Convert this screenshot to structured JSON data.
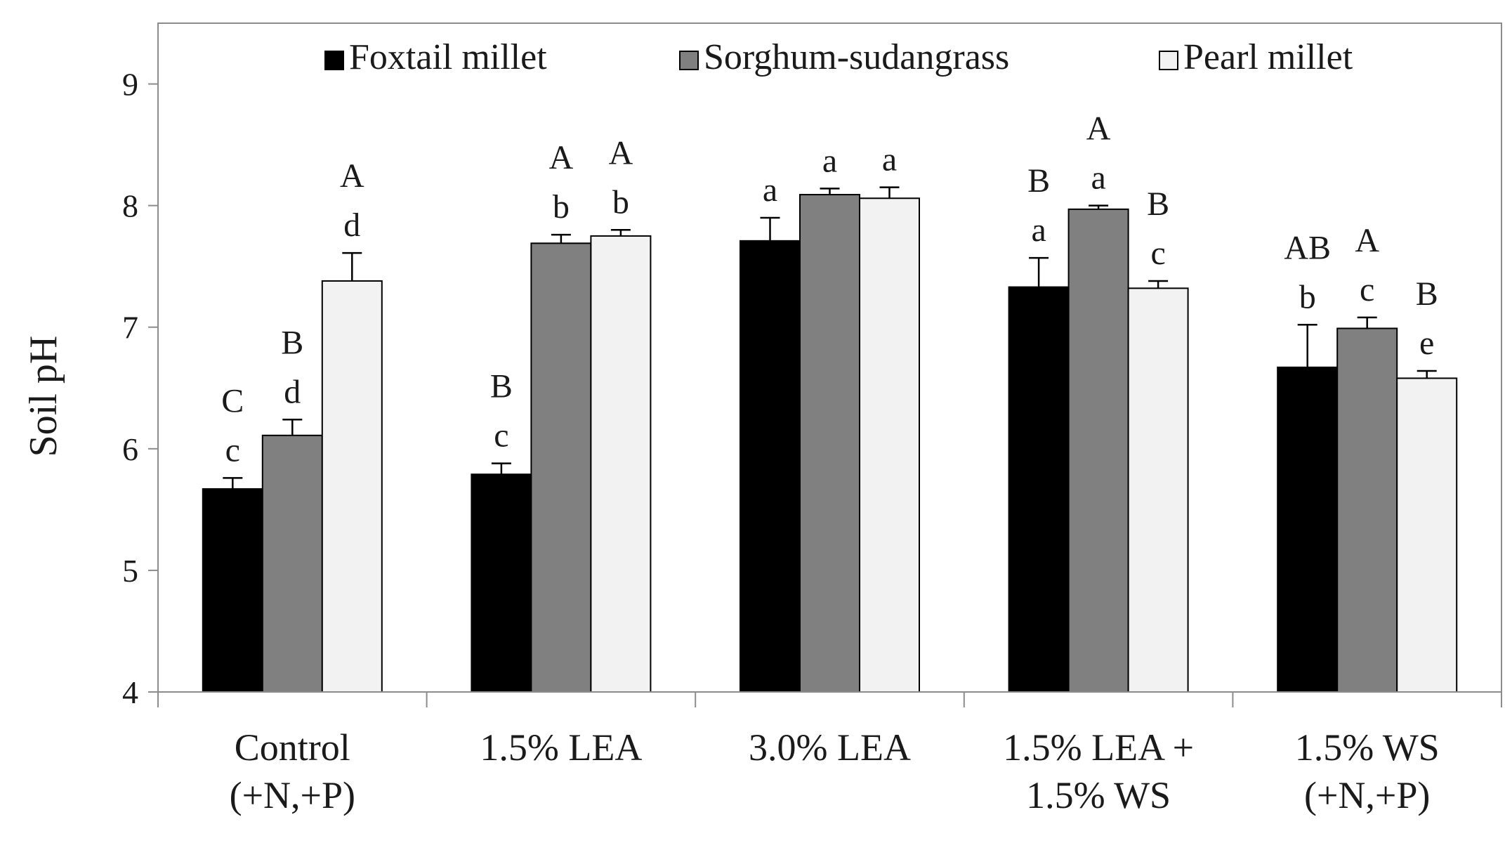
{
  "chart_data": {
    "type": "bar",
    "title": "",
    "xlabel": "",
    "ylabel": "Soil pH",
    "ylim": [
      4,
      9.5
    ],
    "yticks": [
      4,
      5,
      6,
      7,
      8,
      9
    ],
    "grid": false,
    "legend_position": "top",
    "categories": [
      [
        "Control",
        "(+N,+P)"
      ],
      [
        "1.5% LEA"
      ],
      [
        "3.0% LEA"
      ],
      [
        "1.5% LEA +",
        "1.5% WS"
      ],
      [
        "1.5% WS",
        "(+N,+P)"
      ]
    ],
    "series": [
      {
        "name": "Foxtail millet",
        "color": "#000000",
        "values": [
          5.67,
          5.79,
          7.71,
          7.33,
          6.67
        ],
        "errors": [
          0.09,
          0.09,
          0.19,
          0.24,
          0.35
        ],
        "significance": [
          [
            "C",
            "c"
          ],
          [
            "B",
            "c"
          ],
          [
            "a"
          ],
          [
            "B",
            "a"
          ],
          [
            "AB",
            "b"
          ]
        ]
      },
      {
        "name": "Sorghum-sudangrass",
        "color": "#808080",
        "values": [
          6.11,
          7.69,
          8.09,
          7.97,
          6.99
        ],
        "errors": [
          0.13,
          0.07,
          0.05,
          0.03,
          0.09
        ],
        "significance": [
          [
            "B",
            "d"
          ],
          [
            "A",
            "b"
          ],
          [
            "a"
          ],
          [
            "A",
            "a"
          ],
          [
            "A",
            "c"
          ]
        ]
      },
      {
        "name": "Pearl millet",
        "color": "#f2f2f2",
        "values": [
          7.38,
          7.75,
          8.06,
          7.32,
          6.58
        ],
        "errors": [
          0.23,
          0.05,
          0.09,
          0.06,
          0.06
        ],
        "significance": [
          [
            "A",
            "d"
          ],
          [
            "A",
            "b"
          ],
          [
            "a"
          ],
          [
            "B",
            "c"
          ],
          [
            "B",
            "e"
          ]
        ]
      }
    ]
  }
}
